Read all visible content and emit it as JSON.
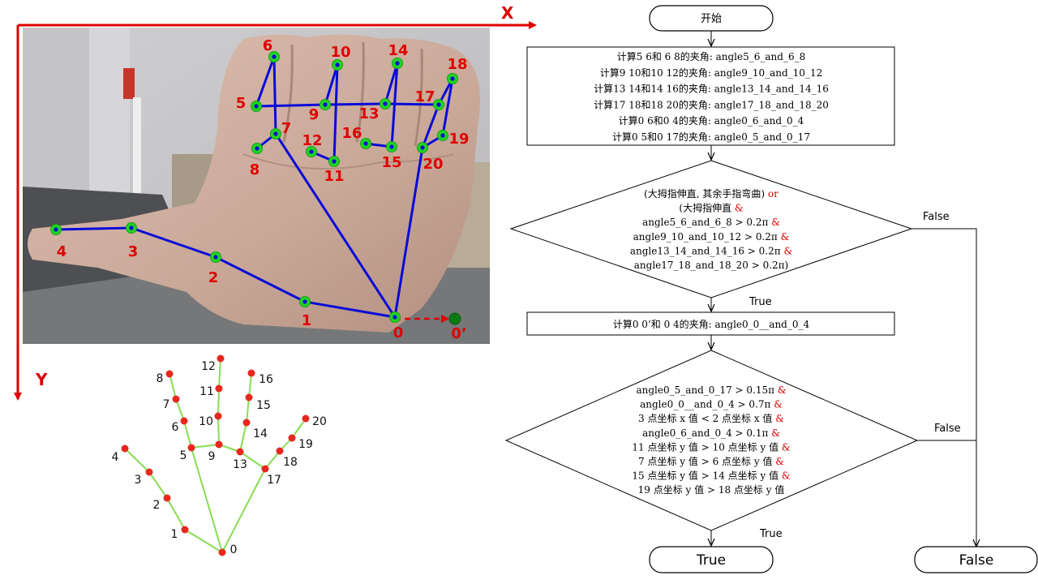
{
  "axes": {
    "x_label": "X",
    "y_label": "Y"
  },
  "photo_landmarks": [
    {
      "id": "0",
      "label": "0"
    },
    {
      "id": "1",
      "label": "1"
    },
    {
      "id": "2",
      "label": "2"
    },
    {
      "id": "3",
      "label": "3"
    },
    {
      "id": "4",
      "label": "4"
    },
    {
      "id": "5",
      "label": "5"
    },
    {
      "id": "6",
      "label": "6"
    },
    {
      "id": "7",
      "label": "7"
    },
    {
      "id": "8",
      "label": "8"
    },
    {
      "id": "9",
      "label": "9"
    },
    {
      "id": "10",
      "label": "10"
    },
    {
      "id": "11",
      "label": "11"
    },
    {
      "id": "12",
      "label": "12"
    },
    {
      "id": "13",
      "label": "13"
    },
    {
      "id": "14",
      "label": "14"
    },
    {
      "id": "15",
      "label": "15"
    },
    {
      "id": "16",
      "label": "16"
    },
    {
      "id": "17",
      "label": "17"
    },
    {
      "id": "18",
      "label": "18"
    },
    {
      "id": "19",
      "label": "19"
    },
    {
      "id": "20",
      "label": "20"
    },
    {
      "id": "0p",
      "label": "0’"
    }
  ],
  "skeleton_labels": [
    "0",
    "1",
    "2",
    "3",
    "4",
    "5",
    "6",
    "7",
    "8",
    "9",
    "10",
    "11",
    "12",
    "13",
    "14",
    "15",
    "16",
    "17",
    "18",
    "19",
    "20"
  ],
  "flowchart": {
    "start": "开始",
    "box1_lines": [
      "计算5  6和 6  8的夹角: angle5_6_and_6_8",
      "计算9  10和10  12的夹角: angle9_10_and_10_12",
      "计算13  14和14  16的夹角: angle13_14_and_14_16",
      "计算17  18和18  20的夹角: angle17_18_and_18_20",
      "计算0  6和0  4的夹角: angle0_6_and_0_4",
      "计算0  5和0  17的夹角: angle0_5_and_0_17"
    ],
    "diamond1_lines": [
      {
        "t": "(大拇指伸直, 其余手指弯曲) ",
        "op": "or"
      },
      {
        "t": "(大拇指伸直 ",
        "op": "&"
      },
      {
        "t": "angle5_6_and_6_8 > 0.2π ",
        "op": "&"
      },
      {
        "t": "angle9_10_and_10_12 > 0.2π ",
        "op": "&"
      },
      {
        "t": "angle13_14_and_14_16 > 0.2π ",
        "op": "&"
      },
      {
        "t": "angle17_18_and_18_20 > 0.2π)",
        "op": ""
      }
    ],
    "box2_text": "计算0  0’和 0  4的夹角: angle0_0__and_0_4",
    "diamond2_lines": [
      {
        "t": "angle0_5_and_0_17 > 0.15π ",
        "op": "&"
      },
      {
        "t": "angle0_0__and_0_4 > 0.7π ",
        "op": "&"
      },
      {
        "t": "3 点坐标 x 值 < 2 点坐标 x 值 ",
        "op": "&"
      },
      {
        "t": "angle0_6_and_0_4 > 0.1π ",
        "op": "&"
      },
      {
        "t": "11 点坐标 y 值 > 10 点坐标 y 值 ",
        "op": "&"
      },
      {
        "t": "7 点坐标 y 值 > 6 点坐标 y 值 ",
        "op": "&"
      },
      {
        "t": "15 点坐标 y 值 > 14 点坐标 y 值 ",
        "op": "&"
      },
      {
        "t": "19 点坐标 y 值 > 18 点坐标 y 值",
        "op": ""
      }
    ],
    "true_label_1": "True",
    "true_label_2": "True",
    "false_label_1": "False",
    "false_label_2": "False",
    "end_true": "True",
    "end_false": "False"
  },
  "colors": {
    "axis_red": "#e00000",
    "label_red": "#e00000",
    "bone_blue": "#0a0ad8",
    "joint_green": "#22d422",
    "skeleton_line": "#88dd55",
    "skeleton_dot": "#e8281e",
    "op_red": "#d80000"
  }
}
